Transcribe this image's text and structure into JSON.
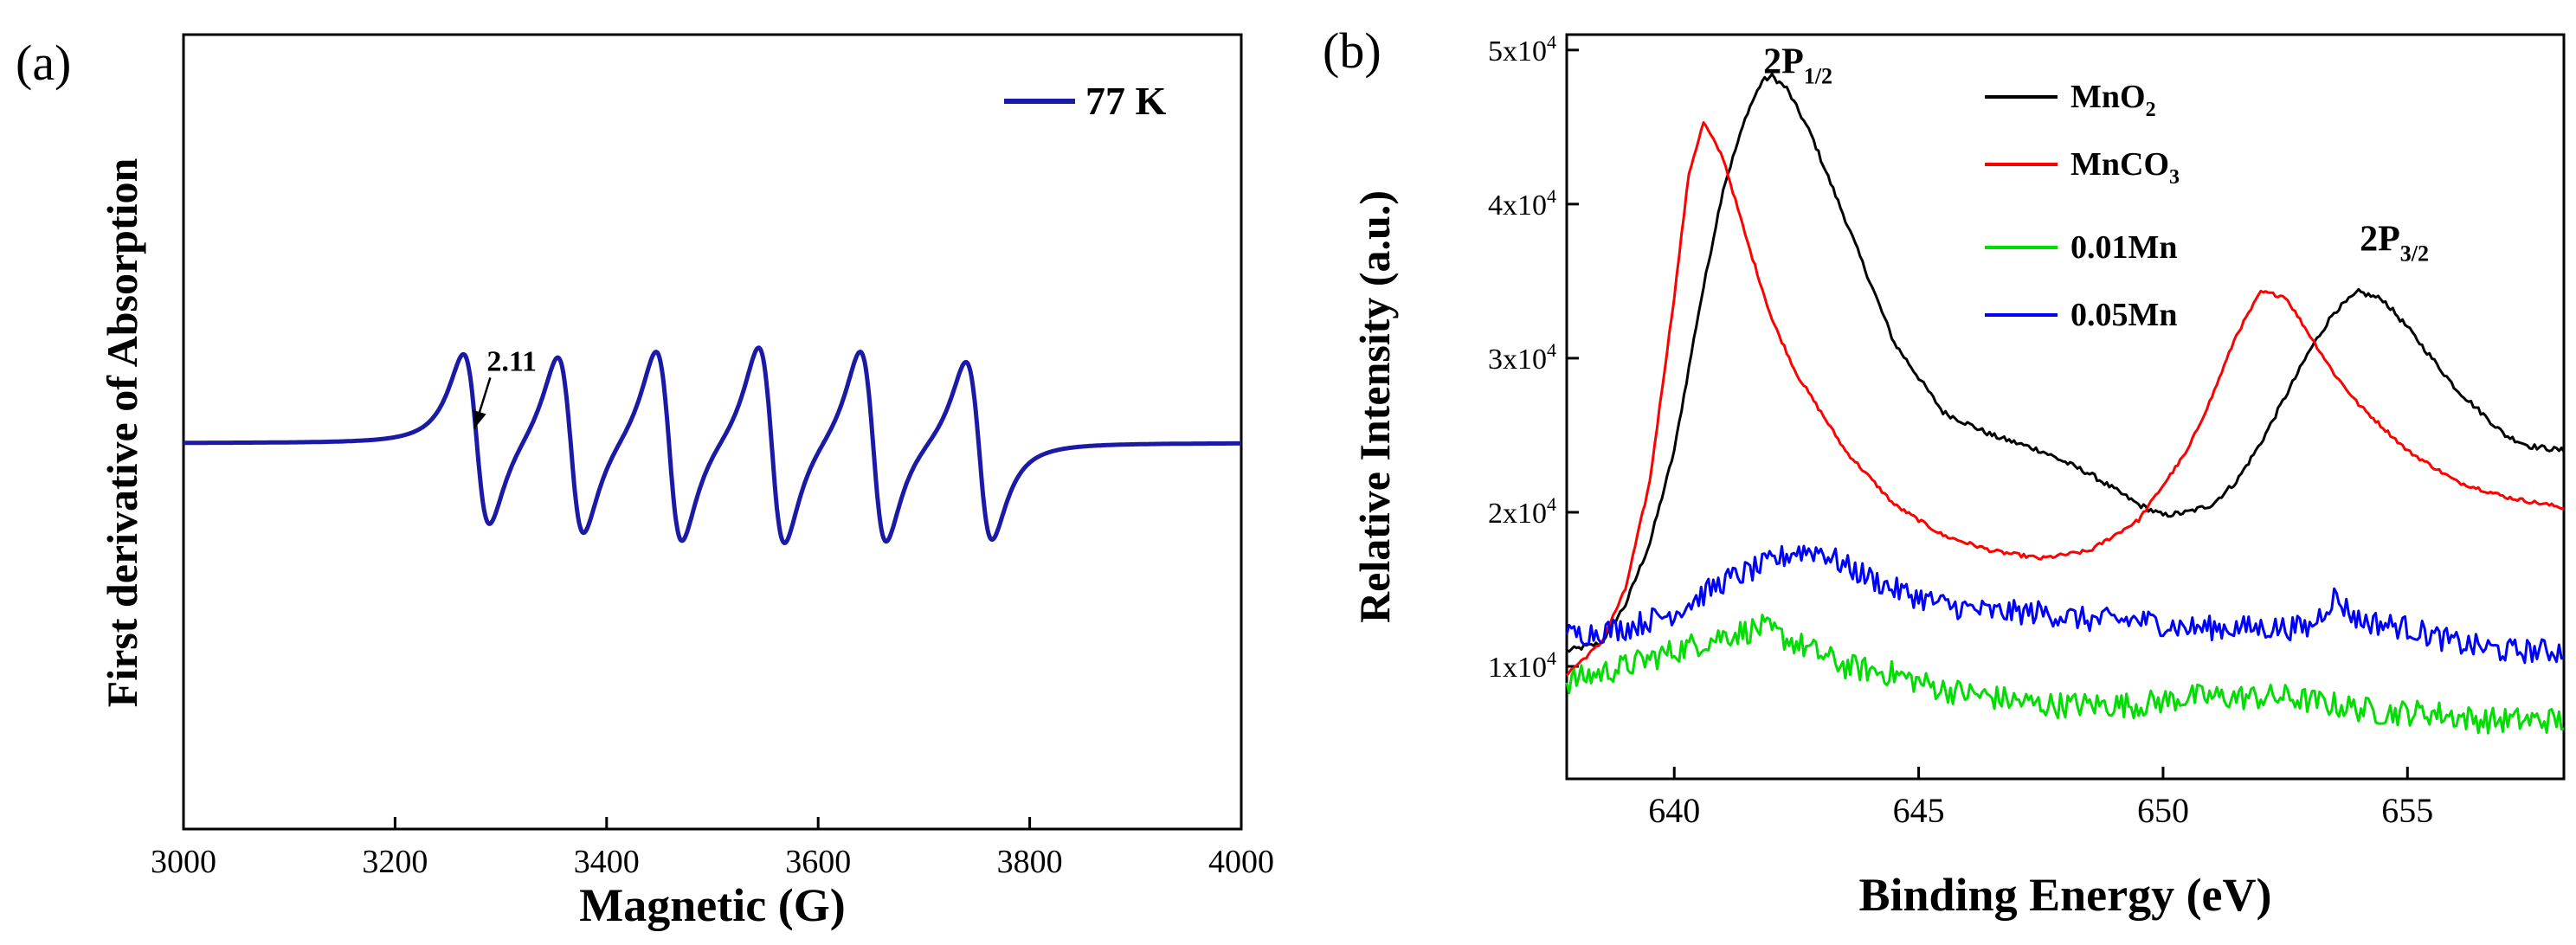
{
  "chart_data": [
    {
      "panel_label": "(a)",
      "type": "line",
      "title": "",
      "xlabel": "Magnetic (G)",
      "ylabel": "First derivative of Absorption",
      "xlim": [
        3000,
        4000
      ],
      "x_ticks": [
        "3000",
        "3200",
        "3400",
        "3600",
        "3800",
        "4000"
      ],
      "y_ticks": [],
      "grid": false,
      "legend_position": "top-right",
      "annotation": {
        "text": "2.11",
        "arrow_from": [
          3290,
          0.36
        ],
        "arrow_to": [
          3275,
          0.08
        ]
      },
      "series": [
        {
          "name": "77 K",
          "color": "#1a1aa6",
          "shape": "derivative-sextet",
          "baseline": 0,
          "lines": [
            {
              "center": 3277,
              "peak": 0.84,
              "trough": -0.85
            },
            {
              "center": 3366,
              "peak": 0.86,
              "trough": -0.91
            },
            {
              "center": 3459,
              "peak": 0.92,
              "trough": -0.98
            },
            {
              "center": 3556,
              "peak": 0.96,
              "trough": -1.0
            },
            {
              "center": 3652,
              "peak": 0.93,
              "trough": -0.97
            },
            {
              "center": 3752,
              "peak": 0.84,
              "trough": -0.92
            }
          ]
        }
      ]
    },
    {
      "panel_label": "(b)",
      "type": "line",
      "title": "",
      "xlabel": "Binding Energy (eV)",
      "ylabel": "Relative Intensity (a.u.)",
      "xlim": [
        637.8,
        658.2
      ],
      "ylim": [
        2700,
        51000
      ],
      "x_ticks": [
        "640",
        "645",
        "650",
        "655"
      ],
      "y_ticks": [
        {
          "value": 10000,
          "mantissa": "1x10",
          "exp": "4"
        },
        {
          "value": 20000,
          "mantissa": "2x10",
          "exp": "4"
        },
        {
          "value": 30000,
          "mantissa": "3x10",
          "exp": "4"
        },
        {
          "value": 40000,
          "mantissa": "4x10",
          "exp": "4"
        },
        {
          "value": 50000,
          "mantissa": "5x10",
          "exp": "4"
        }
      ],
      "grid": false,
      "legend_position": "top-center",
      "peak_labels": [
        {
          "main": "2P",
          "sub": "1/2",
          "x": 642.0,
          "y": 48500
        },
        {
          "main": "2P",
          "sub": "3/2",
          "x": 654.2,
          "y": 37000
        }
      ],
      "series": [
        {
          "name": "MnO",
          "name_sub": "2",
          "color": "#000000",
          "x": [
            637.8,
            638.5,
            639.0,
            639.5,
            640.0,
            640.5,
            641.0,
            641.5,
            641.8,
            642.0,
            642.3,
            642.8,
            643.5,
            644.5,
            645.5,
            646.5,
            647.5,
            648.5,
            649.5,
            650.0,
            650.5,
            651.0,
            651.5,
            652.0,
            652.5,
            653.0,
            653.5,
            654.0,
            654.5,
            655.0,
            655.5,
            656.0,
            656.5,
            657.0,
            657.5,
            658.2
          ],
          "y": [
            11000,
            11500,
            14000,
            18000,
            24000,
            33000,
            41000,
            46000,
            48000,
            48300,
            47500,
            44500,
            39000,
            31000,
            26500,
            25000,
            24000,
            22500,
            20500,
            19800,
            20000,
            20500,
            22000,
            24500,
            27500,
            30500,
            33000,
            34300,
            33800,
            32000,
            30000,
            28000,
            26500,
            25000,
            24300,
            24000
          ]
        },
        {
          "name": "MnCO",
          "name_sub": "3",
          "color": "#ff0000",
          "x": [
            637.8,
            638.5,
            639.0,
            639.5,
            640.0,
            640.3,
            640.6,
            641.0,
            641.5,
            642.0,
            642.5,
            643.5,
            644.5,
            645.5,
            646.5,
            647.5,
            648.5,
            649.5,
            650.5,
            651.0,
            651.5,
            652.0,
            652.5,
            653.0,
            653.5,
            654.0,
            654.5,
            655.0,
            655.5,
            656.0,
            656.5,
            657.0,
            657.5,
            658.2
          ],
          "y": [
            9500,
            11500,
            15000,
            22000,
            34000,
            42000,
            45300,
            43000,
            37500,
            32500,
            29000,
            24000,
            20500,
            18500,
            17500,
            17000,
            17500,
            19500,
            24000,
            27500,
            31500,
            34300,
            34000,
            31500,
            29000,
            27000,
            25500,
            24000,
            23000,
            22000,
            21500,
            21000,
            20700,
            20300
          ]
        },
        {
          "name": "0.01Mn",
          "color": "#00dd00",
          "x": [
            637.8,
            639.0,
            640.0,
            641.0,
            641.8,
            642.5,
            643.5,
            644.5,
            645.5,
            646.5,
            647.5,
            648.5,
            649.5,
            650.5,
            651.5,
            652.5,
            653.5,
            654.5,
            655.5,
            656.5,
            657.5,
            658.2
          ],
          "y": [
            9000,
            10000,
            11000,
            12000,
            12500,
            11500,
            10000,
            9500,
            8500,
            8000,
            7500,
            7500,
            7500,
            8000,
            8000,
            8000,
            7500,
            7000,
            7000,
            6500,
            6500,
            6500
          ]
        },
        {
          "name": "0.05Mn",
          "color": "#0000ff",
          "x": [
            637.8,
            639.0,
            640.0,
            641.0,
            641.8,
            642.5,
            643.0,
            643.5,
            644.5,
            645.5,
            646.5,
            647.5,
            648.5,
            649.5,
            650.5,
            651.5,
            652.5,
            653.0,
            653.5,
            654.0,
            655.0,
            656.0,
            657.0,
            658.2
          ],
          "y": [
            12000,
            12500,
            13500,
            15500,
            16500,
            17500,
            17500,
            16500,
            15000,
            14000,
            13500,
            13500,
            13000,
            13000,
            12500,
            12500,
            12500,
            12500,
            14500,
            13000,
            12500,
            11500,
            11000,
            11000
          ]
        }
      ]
    }
  ]
}
